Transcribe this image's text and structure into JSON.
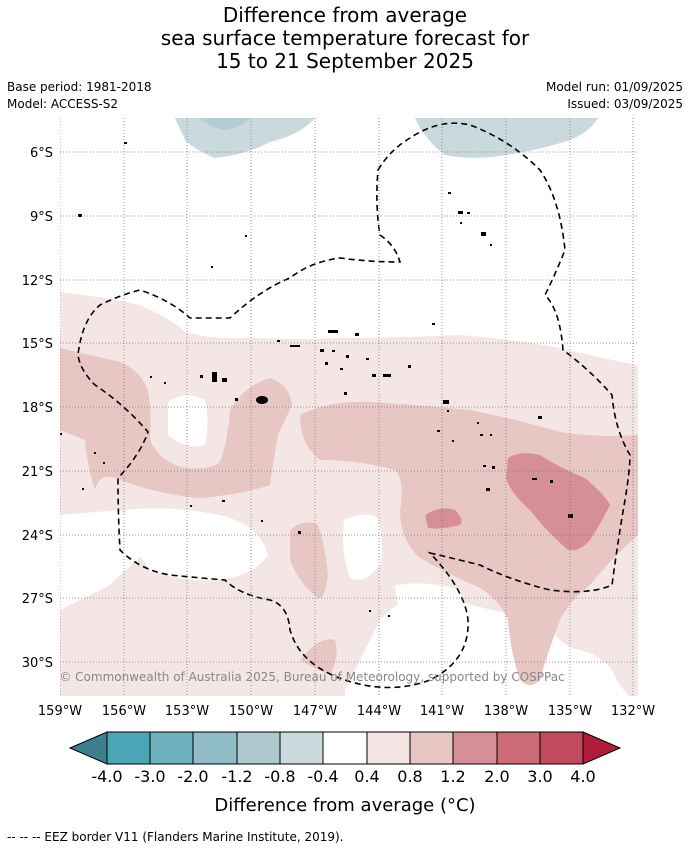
{
  "title_lines": [
    "Difference from average",
    "sea surface temperature forecast for",
    "15 to 21 September 2025"
  ],
  "meta": {
    "base_period": "Base period: 1981-2018",
    "model": "Model: ACCESS-S2",
    "model_run": "Model run: 01/09/2025",
    "issued": "Issued: 03/09/2025"
  },
  "map": {
    "lon_labels": [
      "159°W",
      "156°W",
      "153°W",
      "150°W",
      "147°W",
      "144°W",
      "141°W",
      "138°W",
      "135°W",
      "132°W"
    ],
    "lat_labels": [
      "6°S",
      "9°S",
      "12°S",
      "15°S",
      "18°S",
      "21°S",
      "24°S",
      "27°S",
      "30°S"
    ],
    "copyright": "© Commonwealth of Australia 2025, Bureau of Meteorology, supported by COSPPac",
    "fill_colors": {
      "cool": "#c9d9dc",
      "cool_mid": "#b3cdd2",
      "warm_light": "#f4e6e5",
      "warm_mid": "#e8c6c3",
      "warm_strong": "#d68f96",
      "land": "#000000"
    }
  },
  "colorbar": {
    "ticks": [
      "-4.0",
      "-3.0",
      "-2.0",
      "-1.2",
      "-0.8",
      "-0.4",
      "0.4",
      "0.8",
      "1.2",
      "2.0",
      "3.0",
      "4.0"
    ],
    "colors": [
      "#3b7f8c",
      "#4aa6b5",
      "#6fb1bf",
      "#8fbcc7",
      "#adc9ce",
      "#c9d9dc",
      "#ffffff",
      "#f4e6e5",
      "#e8c6c3",
      "#d68f96",
      "#cc6a76",
      "#c24a5d",
      "#b11c3c"
    ],
    "label": "Difference from average (°C)"
  },
  "footer": "-- -- -- EEZ border V11 (Flanders Marine Institute, 2019)."
}
